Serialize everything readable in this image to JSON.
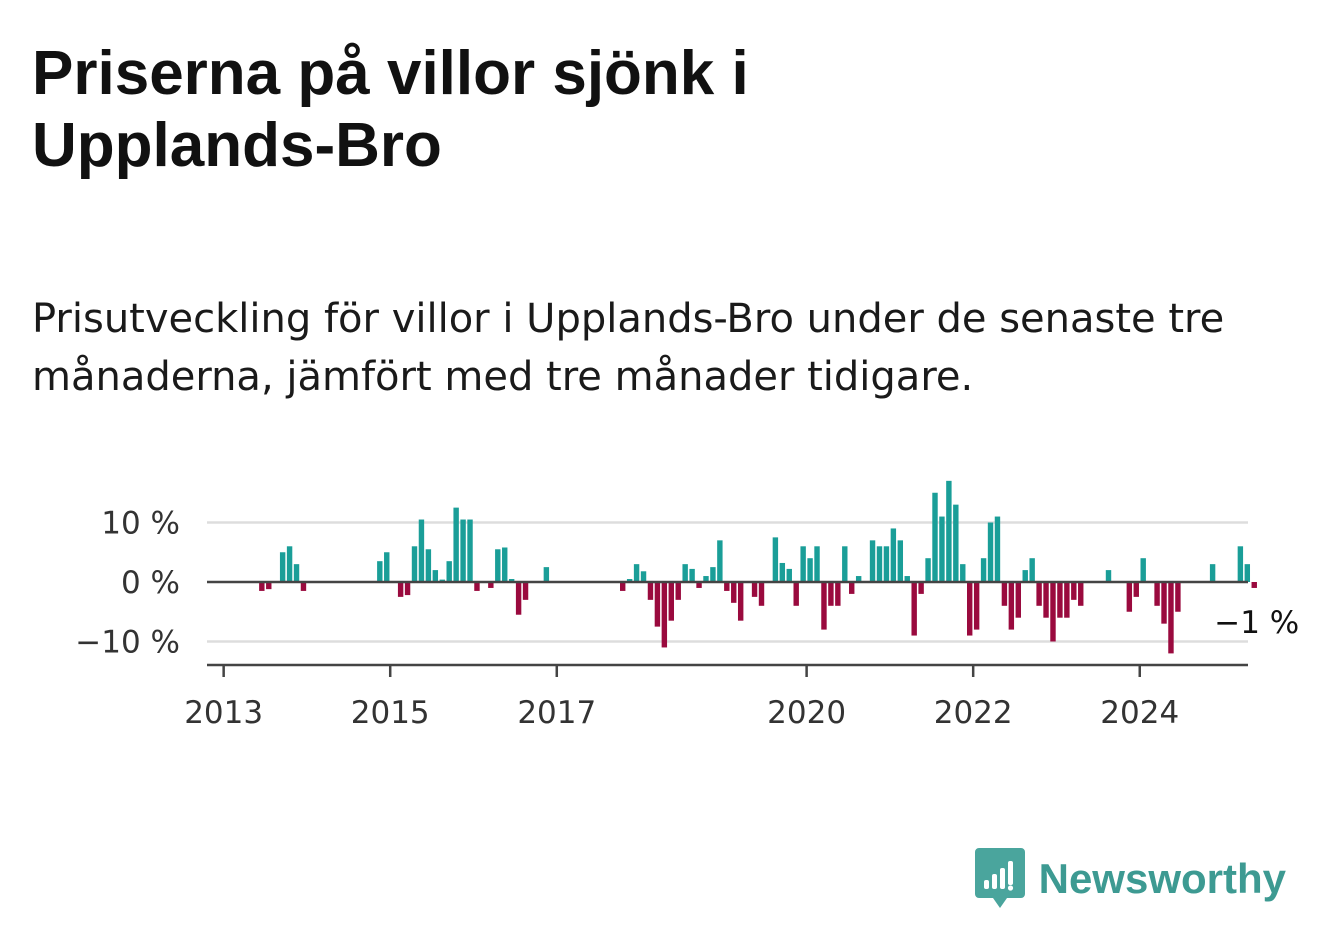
{
  "title": "Priserna på villor sjönk i Upplands-Bro",
  "subtitle": "Prisutveckling för villor i Upplands-Bro under de senaste tre månaderna, jämfört med tre månader tidigare.",
  "brand": {
    "name": "Newsworthy",
    "icon": "newsworthy-logo-icon",
    "color": "#3d9a92"
  },
  "chart_data": {
    "type": "bar",
    "ylabel": "",
    "xlabel": "",
    "ylim": [
      -14,
      18
    ],
    "y_ticks": [
      {
        "value": 10,
        "label": "10 %"
      },
      {
        "value": 0,
        "label": "0 %"
      },
      {
        "value": -10,
        "label": "−10 %"
      }
    ],
    "x_ticks": [
      {
        "value": 2013,
        "label": "2013"
      },
      {
        "value": 2015,
        "label": "2015"
      },
      {
        "value": 2017,
        "label": "2017"
      },
      {
        "value": 2020,
        "label": "2020"
      },
      {
        "value": 2022,
        "label": "2022"
      },
      {
        "value": 2024,
        "label": "2024"
      }
    ],
    "x_range": [
      2012.8,
      2025.3
    ],
    "positive_color": "#1a9e98",
    "negative_color": "#9a0a3e",
    "grid": true,
    "start": {
      "year": 2013,
      "month": 1
    },
    "values": [
      0,
      0,
      0,
      0,
      0,
      -1.5,
      -1.2,
      0,
      5,
      6,
      3,
      -1.5,
      0,
      0,
      0,
      0,
      0,
      0,
      0,
      0,
      0,
      0,
      3.5,
      5,
      0,
      -2.5,
      -2.2,
      6,
      10.5,
      5.5,
      2,
      0.4,
      3.5,
      12.5,
      10.5,
      10.5,
      -1.5,
      0,
      -1,
      5.5,
      5.8,
      0.5,
      -5.5,
      -3,
      0,
      0,
      2.5,
      0,
      0,
      0,
      0,
      0,
      0,
      0,
      0,
      0,
      0,
      -1.5,
      0.5,
      3,
      1.8,
      -3,
      -7.5,
      -11,
      -6.5,
      -3,
      3,
      2.2,
      -1,
      1,
      2.5,
      7,
      -1.5,
      -3.5,
      -6.5,
      0,
      -2.5,
      -4,
      0,
      7.5,
      3.2,
      2.2,
      -4,
      6,
      4,
      6,
      -8,
      -4,
      -4,
      6,
      -2,
      1,
      0,
      7,
      6,
      6,
      9,
      7,
      1,
      -9,
      -2,
      4,
      15,
      11,
      17,
      13,
      3,
      -9,
      -8,
      4,
      10,
      11,
      -4,
      -8,
      -6,
      2,
      4,
      -4,
      -6,
      -10,
      -6,
      -6,
      -3,
      -4,
      0,
      0,
      0,
      2,
      0,
      0,
      -5,
      -2.5,
      4,
      0,
      -4,
      -7,
      -12,
      -5,
      0,
      0,
      0,
      0,
      3,
      0,
      0,
      0,
      6,
      3,
      -1
    ],
    "last_value_label": "−1 %"
  }
}
